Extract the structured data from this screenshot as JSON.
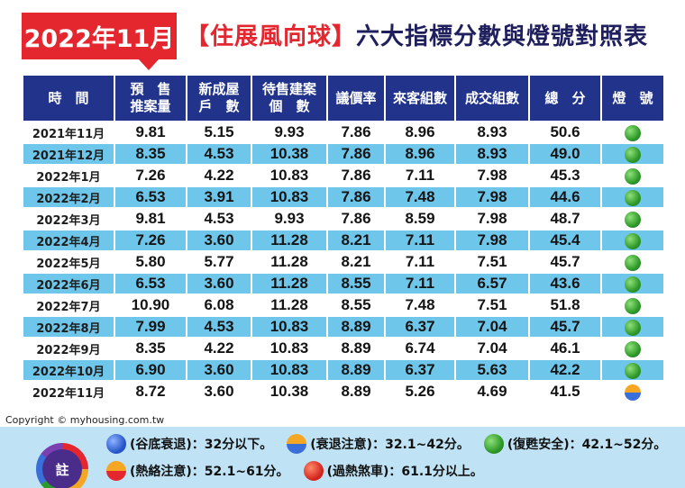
{
  "title": {
    "date": "2022年11月",
    "bracket": "【住展風向球】",
    "rest": "六大指標分數與燈號對照表"
  },
  "table": {
    "headers": [
      "時　間",
      "預　售\n推案量",
      "新成屋\n戶　數",
      "待售建案\n個　數",
      "議價率",
      "來客組數",
      "成交組數",
      "總　分",
      "燈　號"
    ],
    "rows": [
      {
        "month": "2021年11月",
        "v1": "9.81",
        "v2": "5.15",
        "v3": "9.93",
        "v4": "7.86",
        "v5": "8.96",
        "v6": "8.93",
        "total": "50.6",
        "light": "green"
      },
      {
        "month": "2021年12月",
        "v1": "8.35",
        "v2": "4.53",
        "v3": "10.38",
        "v4": "7.86",
        "v5": "8.96",
        "v6": "8.93",
        "total": "49.0",
        "light": "green"
      },
      {
        "month": "2022年1月",
        "v1": "7.26",
        "v2": "4.22",
        "v3": "10.83",
        "v4": "7.86",
        "v5": "7.11",
        "v6": "7.98",
        "total": "45.3",
        "light": "green"
      },
      {
        "month": "2022年2月",
        "v1": "6.53",
        "v2": "3.91",
        "v3": "10.83",
        "v4": "7.86",
        "v5": "7.48",
        "v6": "7.98",
        "total": "44.6",
        "light": "green"
      },
      {
        "month": "2022年3月",
        "v1": "9.81",
        "v2": "4.53",
        "v3": "9.93",
        "v4": "7.86",
        "v5": "8.59",
        "v6": "7.98",
        "total": "48.7",
        "light": "green"
      },
      {
        "month": "2022年4月",
        "v1": "7.26",
        "v2": "3.60",
        "v3": "11.28",
        "v4": "8.21",
        "v5": "7.11",
        "v6": "7.98",
        "total": "45.4",
        "light": "green"
      },
      {
        "month": "2022年5月",
        "v1": "5.80",
        "v2": "5.77",
        "v3": "11.28",
        "v4": "8.21",
        "v5": "7.11",
        "v6": "7.51",
        "total": "45.7",
        "light": "green"
      },
      {
        "month": "2022年6月",
        "v1": "6.53",
        "v2": "3.60",
        "v3": "11.28",
        "v4": "8.55",
        "v5": "7.11",
        "v6": "6.57",
        "total": "43.6",
        "light": "green"
      },
      {
        "month": "2022年7月",
        "v1": "10.90",
        "v2": "6.08",
        "v3": "11.28",
        "v4": "8.55",
        "v5": "7.48",
        "v6": "7.51",
        "total": "51.8",
        "light": "green"
      },
      {
        "month": "2022年8月",
        "v1": "7.99",
        "v2": "4.53",
        "v3": "10.83",
        "v4": "8.89",
        "v5": "6.37",
        "v6": "7.04",
        "total": "45.7",
        "light": "green"
      },
      {
        "month": "2022年9月",
        "v1": "8.35",
        "v2": "4.22",
        "v3": "10.83",
        "v4": "8.89",
        "v5": "6.74",
        "v6": "7.04",
        "total": "46.1",
        "light": "green"
      },
      {
        "month": "2022年10月",
        "v1": "6.90",
        "v2": "3.60",
        "v3": "10.83",
        "v4": "8.89",
        "v5": "6.37",
        "v6": "5.63",
        "total": "42.2",
        "light": "green"
      },
      {
        "month": "2022年11月",
        "v1": "8.72",
        "v2": "3.60",
        "v3": "10.38",
        "v4": "8.89",
        "v5": "5.26",
        "v6": "4.69",
        "total": "41.5",
        "light": "split"
      }
    ]
  },
  "copyright": "Copyright © myhousing.com.tw",
  "legend": {
    "note_label": "註",
    "items_row1": [
      {
        "style": "blue",
        "text": "(谷底衰退)：32分以下。"
      },
      {
        "style": "orange-blue",
        "text": "(衰退注意)：32.1~42分。"
      },
      {
        "style": "green",
        "text": "(復甦安全)：42.1~52分。"
      }
    ],
    "items_row2": [
      {
        "style": "orange-red",
        "text": "(熱絡注意)：52.1~61分。"
      },
      {
        "style": "red",
        "text": "(過熱煞車)：61.1分以上。"
      }
    ]
  },
  "colors": {
    "title_red": "#e4262f",
    "header_navy": "#21338a",
    "stripe_blue": "#6ec6ea",
    "legend_bg": "#bfe3f5"
  }
}
